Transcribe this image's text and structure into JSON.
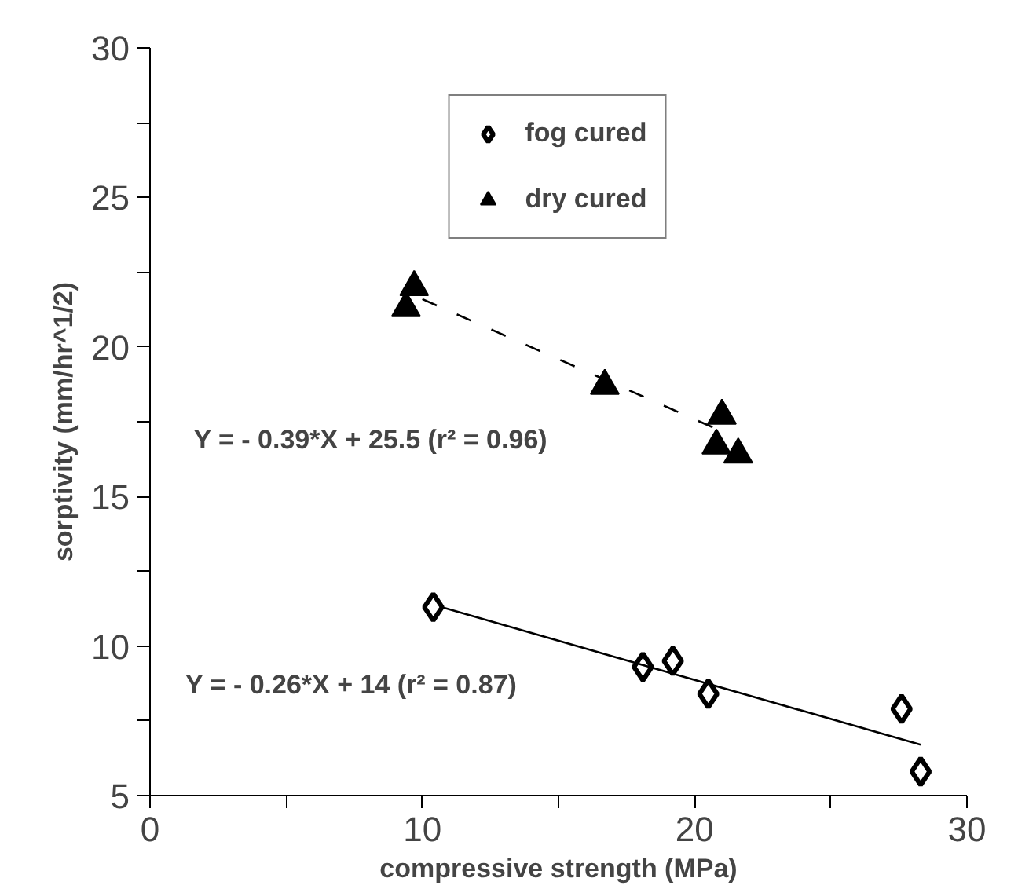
{
  "chart_data": {
    "type": "scatter",
    "xlabel": "compressive strength (MPa)",
    "ylabel": "sorptivity (mm/hr^1/2)",
    "xlim": [
      0,
      30
    ],
    "ylim": [
      5,
      30
    ],
    "xticks": [
      0,
      {
        "value": 5,
        "label": null
      },
      10,
      {
        "value": 15,
        "label": null
      },
      20,
      {
        "value": 25,
        "label": null
      },
      30
    ],
    "yticks": [
      5,
      {
        "value": 7.5,
        "label": null
      },
      10,
      {
        "value": 12.5,
        "label": null
      },
      15,
      {
        "value": 17.5,
        "label": null
      },
      20,
      {
        "value": 22.5,
        "label": null
      },
      25,
      {
        "value": 27.5,
        "label": null
      },
      30
    ],
    "grid": false,
    "legend": "top",
    "series": [
      {
        "name": "fog cured",
        "color": "#000000",
        "marker": "diamond",
        "x": [
          10.4,
          18.1,
          19.2,
          20.5,
          27.6,
          28.3
        ],
        "values": [
          11.3,
          9.3,
          9.5,
          8.4,
          7.9,
          5.8
        ]
      },
      {
        "name": "dry cured",
        "color": "#000000",
        "marker": "triangle",
        "x": [
          9.4,
          9.7,
          16.7,
          21.0,
          20.8,
          21.6
        ],
        "values": [
          21.3,
          22.0,
          18.7,
          17.7,
          16.7,
          16.4
        ]
      },
      {
        "type": "line",
        "color": "#000000",
        "line_style": "solid",
        "x": [
          10.7,
          28.3
        ],
        "values": [
          11.3,
          6.7
        ]
      },
      {
        "type": "line",
        "color": "#000000",
        "line_style": "dashed",
        "x": [
          10.0,
          20.7
        ],
        "values": [
          21.6,
          17.3
        ]
      }
    ],
    "annotations": [
      "Y = - 0.39*X + 25.5 (r² = 0.96)",
      "Y = - 0.26*X + 14 (r² = 0.87)"
    ]
  }
}
